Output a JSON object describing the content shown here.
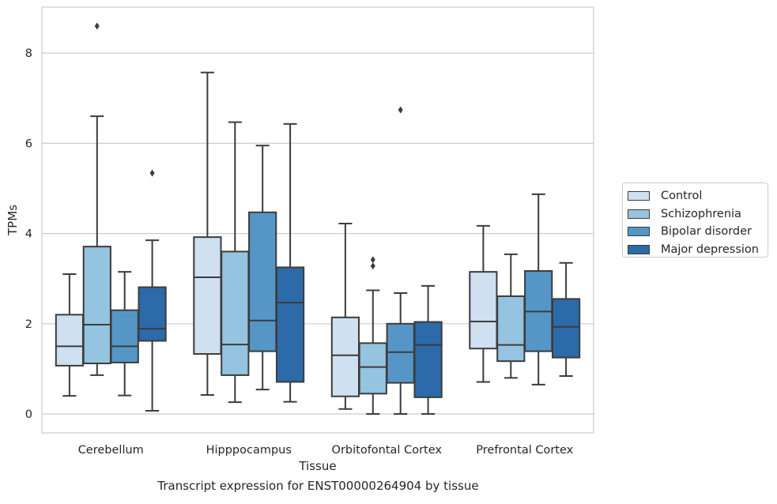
{
  "chart_data": {
    "type": "boxplot",
    "xlabel": "Tissue",
    "ylabel": "TPMs",
    "caption": "Transcript expression for ENST00000264904 by tissue",
    "ylim": [
      -0.4,
      9.0
    ],
    "yticks": [
      0,
      2,
      4,
      6,
      8
    ],
    "grid": "y-only",
    "legend_position": "right",
    "categories": [
      "Cerebellum",
      "Hipppocampus",
      "Orbitofontal Cortex",
      "Prefrontal Cortex"
    ],
    "series": [
      {
        "name": "Control",
        "color": "#cfe0f0",
        "boxes": [
          {
            "whislo": 0.4,
            "q1": 1.07,
            "med": 1.5,
            "q3": 2.2,
            "whishi": 3.1,
            "fliers": []
          },
          {
            "whislo": 0.42,
            "q1": 1.33,
            "med": 3.03,
            "q3": 3.92,
            "whishi": 7.57,
            "fliers": []
          },
          {
            "whislo": 0.11,
            "q1": 0.39,
            "med": 1.3,
            "q3": 2.14,
            "whishi": 4.22,
            "fliers": []
          },
          {
            "whislo": 0.71,
            "q1": 1.45,
            "med": 2.05,
            "q3": 3.15,
            "whishi": 4.17,
            "fliers": []
          }
        ]
      },
      {
        "name": "Schizophrenia",
        "color": "#94c4df",
        "boxes": [
          {
            "whislo": 0.86,
            "q1": 1.12,
            "med": 1.98,
            "q3": 3.71,
            "whishi": 6.6,
            "fliers": [
              8.6
            ]
          },
          {
            "whislo": 0.26,
            "q1": 0.86,
            "med": 1.54,
            "q3": 3.6,
            "whishi": 6.47,
            "fliers": []
          },
          {
            "whislo": 0.0,
            "q1": 0.45,
            "med": 1.04,
            "q3": 1.57,
            "whishi": 2.74,
            "fliers": [
              3.42,
              3.28
            ]
          },
          {
            "whislo": 0.8,
            "q1": 1.17,
            "med": 1.53,
            "q3": 2.61,
            "whishi": 3.54,
            "fliers": []
          }
        ]
      },
      {
        "name": "Bipolar disorder",
        "color": "#5596c7",
        "boxes": [
          {
            "whislo": 0.41,
            "q1": 1.14,
            "med": 1.5,
            "q3": 2.3,
            "whishi": 3.15,
            "fliers": []
          },
          {
            "whislo": 0.54,
            "q1": 1.39,
            "med": 2.07,
            "q3": 4.47,
            "whishi": 5.95,
            "fliers": []
          },
          {
            "whislo": 0.0,
            "q1": 0.69,
            "med": 1.37,
            "q3": 2.0,
            "whishi": 2.68,
            "fliers": [
              6.74
            ]
          },
          {
            "whislo": 0.65,
            "q1": 1.39,
            "med": 2.27,
            "q3": 3.17,
            "whishi": 4.87,
            "fliers": []
          }
        ]
      },
      {
        "name": "Major depression",
        "color": "#2c6aa9",
        "boxes": [
          {
            "whislo": 0.07,
            "q1": 1.62,
            "med": 1.89,
            "q3": 2.81,
            "whishi": 3.85,
            "fliers": [
              5.34
            ]
          },
          {
            "whislo": 0.27,
            "q1": 0.71,
            "med": 2.47,
            "q3": 3.25,
            "whishi": 6.43,
            "fliers": []
          },
          {
            "whislo": 0.0,
            "q1": 0.37,
            "med": 1.53,
            "q3": 2.04,
            "whishi": 2.84,
            "fliers": []
          },
          {
            "whislo": 0.84,
            "q1": 1.25,
            "med": 1.93,
            "q3": 2.55,
            "whishi": 3.35,
            "fliers": []
          }
        ]
      }
    ]
  }
}
